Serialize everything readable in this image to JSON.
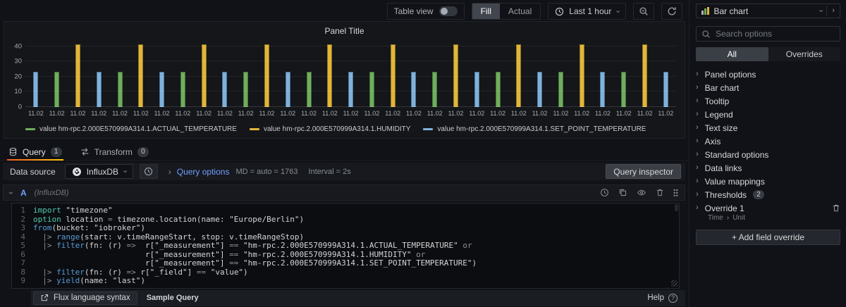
{
  "toolbar": {
    "table_view_label": "Table view",
    "fill": "Fill",
    "actual": "Actual",
    "time_range": "Last 1 hour"
  },
  "panel": {
    "title": "Panel Title"
  },
  "chart_data": {
    "type": "bar",
    "title": "Panel Title",
    "xlabel": "",
    "ylabel": "",
    "ylim": [
      0,
      44
    ],
    "yticks": [
      0,
      10,
      20,
      30,
      40
    ],
    "grid": "horizontal",
    "legend_position": "bottom",
    "x_tick_label": "11.02",
    "series": [
      {
        "name": "value hm-rpc.2.000E570999A314.1.ACTUAL_TEMPERATURE",
        "short": "actual-temperature",
        "color": "#6fae5c",
        "value": 23
      },
      {
        "name": "value hm-rpc.2.000E570999A314.1.HUMIDITY",
        "short": "humidity",
        "color": "#e2b53a",
        "value": 41
      },
      {
        "name": "value hm-rpc.2.000E570999A314.1.SET_POINT_TEMPERATURE",
        "short": "set-point-temperature",
        "color": "#7eb2dd",
        "value": 23
      }
    ],
    "bars": [
      [
        2,
        23
      ],
      [
        0,
        23
      ],
      [
        1,
        41
      ],
      [
        2,
        23
      ],
      [
        0,
        23
      ],
      [
        1,
        41
      ],
      [
        2,
        23
      ],
      [
        0,
        23
      ],
      [
        1,
        41
      ],
      [
        2,
        23
      ],
      [
        0,
        23
      ],
      [
        1,
        41
      ],
      [
        2,
        23
      ],
      [
        0,
        23
      ],
      [
        1,
        41
      ],
      [
        2,
        23
      ],
      [
        0,
        23
      ],
      [
        1,
        41
      ],
      [
        2,
        23
      ],
      [
        0,
        23
      ],
      [
        1,
        41
      ],
      [
        2,
        23
      ],
      [
        0,
        23
      ],
      [
        1,
        41
      ],
      [
        2,
        23
      ],
      [
        0,
        23
      ],
      [
        1,
        41
      ],
      [
        2,
        23
      ],
      [
        0,
        23
      ],
      [
        1,
        41
      ],
      [
        2,
        23
      ]
    ]
  },
  "tabs": {
    "query": "Query",
    "query_count": "1",
    "transform": "Transform",
    "transform_count": "0"
  },
  "datasource_row": {
    "label": "Data source",
    "value": "InfluxDB",
    "query_options_label": "Query options",
    "md": "MD = auto = 1763",
    "interval": "Interval = 2s",
    "inspector": "Query inspector"
  },
  "query_editor": {
    "ref_id": "A",
    "ds_hint": "(InfluxDB)",
    "code_lines": [
      [
        [
          "k",
          "import"
        ],
        [
          "d",
          " \"timezone\""
        ]
      ],
      [
        [
          "k",
          "option"
        ],
        [
          "d",
          " location "
        ],
        [
          "o",
          "="
        ],
        [
          "d",
          " timezone.location(name: \"Europe/Berlin\")"
        ]
      ],
      [
        [
          "f",
          "from"
        ],
        [
          "d",
          "(bucket: \"iobroker\")"
        ]
      ],
      [
        [
          "d",
          "  "
        ],
        [
          "o",
          "|>"
        ],
        [
          "d",
          " "
        ],
        [
          "f",
          "range"
        ],
        [
          "d",
          "(start: v.timeRangeStart, stop: v.timeRangeStop)"
        ]
      ],
      [
        [
          "d",
          "  "
        ],
        [
          "o",
          "|>"
        ],
        [
          "d",
          " "
        ],
        [
          "f",
          "filter"
        ],
        [
          "d",
          "(fn: (r) "
        ],
        [
          "o",
          "=>"
        ],
        [
          "d",
          "  r[\"_measurement\"] "
        ],
        [
          "o",
          "=="
        ],
        [
          "d",
          " \"hm-rpc.2.000E570999A314.1.ACTUAL_TEMPERATURE\" "
        ],
        [
          "o",
          "or"
        ]
      ],
      [
        [
          "d",
          "                        r[\"_measurement\"] "
        ],
        [
          "o",
          "=="
        ],
        [
          "d",
          " \"hm-rpc.2.000E570999A314.1.HUMIDITY\" "
        ],
        [
          "o",
          "or"
        ]
      ],
      [
        [
          "d",
          "                        r[\"_measurement\"] "
        ],
        [
          "o",
          "=="
        ],
        [
          "d",
          " \"hm-rpc.2.000E570999A314.1.SET_POINT_TEMPERATURE\")"
        ]
      ],
      [
        [
          "d",
          "  "
        ],
        [
          "o",
          "|>"
        ],
        [
          "d",
          " "
        ],
        [
          "f",
          "filter"
        ],
        [
          "d",
          "(fn: (r) "
        ],
        [
          "o",
          "=>"
        ],
        [
          "d",
          " r[\"_field\"] "
        ],
        [
          "o",
          "=="
        ],
        [
          "d",
          " \"value\")"
        ]
      ],
      [
        [
          "d",
          "  "
        ],
        [
          "o",
          "|>"
        ],
        [
          "d",
          " "
        ],
        [
          "f",
          "yield"
        ],
        [
          "d",
          "(name: \"last\")"
        ]
      ]
    ],
    "footer": {
      "flux_syntax": "Flux language syntax",
      "sample_query": "Sample Query",
      "help": "Help"
    }
  },
  "sidebar": {
    "viz_name": "Bar chart",
    "search_placeholder": "Search options",
    "tabs": {
      "all": "All",
      "overrides": "Overrides"
    },
    "items": [
      {
        "label": "Panel options"
      },
      {
        "label": "Bar chart"
      },
      {
        "label": "Tooltip"
      },
      {
        "label": "Legend"
      },
      {
        "label": "Text size"
      },
      {
        "label": "Axis"
      },
      {
        "label": "Standard options"
      },
      {
        "label": "Data links"
      },
      {
        "label": "Value mappings"
      },
      {
        "label": "Thresholds",
        "badge": "2"
      },
      {
        "label": "Override 1",
        "sub": [
          "Time",
          "Unit"
        ],
        "deletable": true
      }
    ],
    "add_override": "+ Add field override"
  },
  "icons": {
    "toolbar": [
      "toggle-switch",
      "clock-icon",
      "magnifier-minus-icon",
      "refresh-icon"
    ],
    "tabs": [
      "database-icon",
      "transform-arrows-icon"
    ],
    "datasource": [
      "influxdb-logo-icon",
      "clock-icon",
      "chevron-right-icon",
      "chevron-down-icon"
    ],
    "query_header": [
      "history-icon",
      "duplicate-icon",
      "eye-icon",
      "trash-icon",
      "drag-handle"
    ],
    "footer": [
      "external-link-icon",
      "question-circle-icon"
    ],
    "sidebar": [
      "bar-chart-icon",
      "search-icon",
      "chevron-right-icon",
      "trash-icon"
    ]
  },
  "colors": {
    "accent_blue": "#6e9fff",
    "accent_orange": "#f05a28",
    "series_green": "#6fae5c",
    "series_yellow": "#e2b53a",
    "series_blue": "#7eb2dd"
  }
}
